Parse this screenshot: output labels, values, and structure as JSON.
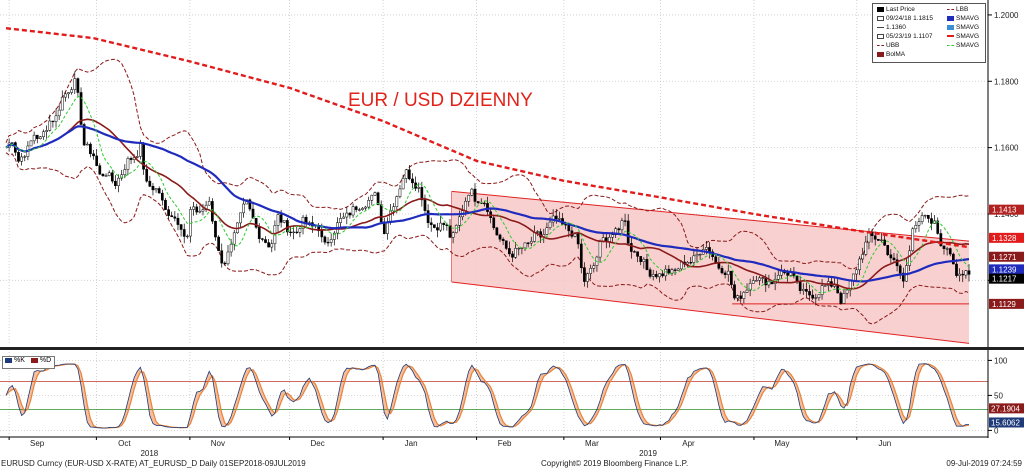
{
  "chart_data": [
    {
      "type": "candlestick",
      "title": "EUR / USD DZIENNY",
      "y_ticks": [
        1.12,
        1.14,
        1.16,
        1.18,
        1.2
      ],
      "y_tick_labels": [
        "1.1200",
        "1.1400",
        "1.1600",
        "1.1800",
        "1.2000"
      ],
      "ylim": [
        1.1005,
        1.2045
      ],
      "x_months": [
        {
          "label": "Sep",
          "date": "2018-09-04"
        },
        {
          "label": "Oct",
          "date": "2018-10-02"
        },
        {
          "label": "Nov",
          "date": "2018-11-01"
        },
        {
          "label": "Dec",
          "date": "2018-12-03"
        },
        {
          "label": "Jan",
          "date": "2019-01-02"
        },
        {
          "label": "Feb",
          "date": "2019-02-01"
        },
        {
          "label": "Mar",
          "date": "2019-03-01"
        },
        {
          "label": "Apr",
          "date": "2019-04-01"
        },
        {
          "label": "May",
          "date": "2019-05-01"
        },
        {
          "label": "Jun",
          "date": "2019-06-03"
        }
      ],
      "x_years": [
        {
          "label": "2018",
          "date": "2018-10-19"
        },
        {
          "label": "2019",
          "date": "2019-03-28"
        }
      ],
      "close_series": [
        [
          "2018-09-03",
          1.16
        ],
        [
          "2018-09-05",
          1.1625
        ],
        [
          "2018-09-07",
          1.156
        ],
        [
          "2018-09-10",
          1.1595
        ],
        [
          "2018-09-12",
          1.164
        ],
        [
          "2018-09-14",
          1.1625
        ],
        [
          "2018-09-17",
          1.168
        ],
        [
          "2018-09-19",
          1.169
        ],
        [
          "2018-09-21",
          1.175
        ],
        [
          "2018-09-24",
          1.1785
        ],
        [
          "2018-09-25",
          1.18
        ],
        [
          "2018-09-26",
          1.176
        ],
        [
          "2018-09-28",
          1.161
        ],
        [
          "2018-10-01",
          1.158
        ],
        [
          "2018-10-03",
          1.1515
        ],
        [
          "2018-10-05",
          1.1525
        ],
        [
          "2018-10-08",
          1.149
        ],
        [
          "2018-10-10",
          1.152
        ],
        [
          "2018-10-12",
          1.156
        ],
        [
          "2018-10-15",
          1.158
        ],
        [
          "2018-10-16",
          1.161
        ],
        [
          "2018-10-18",
          1.149
        ],
        [
          "2018-10-22",
          1.147
        ],
        [
          "2018-10-24",
          1.141
        ],
        [
          "2018-10-26",
          1.14
        ],
        [
          "2018-10-29",
          1.137
        ],
        [
          "2018-10-31",
          1.131
        ],
        [
          "2018-11-01",
          1.141
        ],
        [
          "2018-11-05",
          1.141
        ],
        [
          "2018-11-07",
          1.144
        ],
        [
          "2018-11-09",
          1.134
        ],
        [
          "2018-11-12",
          1.123
        ],
        [
          "2018-11-13",
          1.129
        ],
        [
          "2018-11-15",
          1.133
        ],
        [
          "2018-11-19",
          1.144
        ],
        [
          "2018-11-21",
          1.139
        ],
        [
          "2018-11-23",
          1.134
        ],
        [
          "2018-11-27",
          1.13
        ],
        [
          "2018-11-29",
          1.1395
        ],
        [
          "2018-12-03",
          1.135
        ],
        [
          "2018-12-05",
          1.134
        ],
        [
          "2018-12-07",
          1.138
        ],
        [
          "2018-12-10",
          1.136
        ],
        [
          "2018-12-12",
          1.137
        ],
        [
          "2018-12-14",
          1.13
        ],
        [
          "2018-12-17",
          1.1345
        ],
        [
          "2018-12-19",
          1.138
        ],
        [
          "2018-12-21",
          1.139
        ],
        [
          "2018-12-24",
          1.142
        ],
        [
          "2018-12-27",
          1.143
        ],
        [
          "2018-12-31",
          1.146
        ],
        [
          "2019-01-02",
          1.134
        ],
        [
          "2019-01-04",
          1.14
        ],
        [
          "2019-01-07",
          1.147
        ],
        [
          "2019-01-09",
          1.153
        ],
        [
          "2019-01-10",
          1.152
        ],
        [
          "2019-01-14",
          1.147
        ],
        [
          "2019-01-16",
          1.139
        ],
        [
          "2019-01-18",
          1.136
        ],
        [
          "2019-01-22",
          1.137
        ],
        [
          "2019-01-24",
          1.132
        ],
        [
          "2019-01-28",
          1.143
        ],
        [
          "2019-01-30",
          1.148
        ],
        [
          "2019-01-31",
          1.145
        ],
        [
          "2019-02-04",
          1.1435
        ],
        [
          "2019-02-06",
          1.137
        ],
        [
          "2019-02-08",
          1.133
        ],
        [
          "2019-02-12",
          1.1275
        ],
        [
          "2019-02-14",
          1.129
        ],
        [
          "2019-02-18",
          1.131
        ],
        [
          "2019-02-20",
          1.134
        ],
        [
          "2019-02-22",
          1.133
        ],
        [
          "2019-02-26",
          1.139
        ],
        [
          "2019-02-28",
          1.137
        ],
        [
          "2019-03-04",
          1.134
        ],
        [
          "2019-03-06",
          1.13
        ],
        [
          "2019-03-07",
          1.119
        ],
        [
          "2019-03-11",
          1.125
        ],
        [
          "2019-03-13",
          1.132
        ],
        [
          "2019-03-15",
          1.133
        ],
        [
          "2019-03-19",
          1.135
        ],
        [
          "2019-03-20",
          1.141
        ],
        [
          "2019-03-22",
          1.13
        ],
        [
          "2019-03-26",
          1.1265
        ],
        [
          "2019-03-28",
          1.1225
        ],
        [
          "2019-04-01",
          1.1215
        ],
        [
          "2019-04-03",
          1.123
        ],
        [
          "2019-04-05",
          1.122
        ],
        [
          "2019-04-09",
          1.126
        ],
        [
          "2019-04-11",
          1.1255
        ],
        [
          "2019-04-15",
          1.1305
        ],
        [
          "2019-04-17",
          1.129
        ],
        [
          "2019-04-19",
          1.1245
        ],
        [
          "2019-04-23",
          1.122
        ],
        [
          "2019-04-25",
          1.1135
        ],
        [
          "2019-04-29",
          1.118
        ],
        [
          "2019-05-01",
          1.1215
        ],
        [
          "2019-05-03",
          1.12
        ],
        [
          "2019-05-07",
          1.1195
        ],
        [
          "2019-05-09",
          1.1225
        ],
        [
          "2019-05-13",
          1.122
        ],
        [
          "2019-05-15",
          1.118
        ],
        [
          "2019-05-17",
          1.116
        ],
        [
          "2019-05-21",
          1.1155
        ],
        [
          "2019-05-23",
          1.118
        ],
        [
          "2019-05-27",
          1.119
        ],
        [
          "2019-05-29",
          1.1135
        ],
        [
          "2019-05-31",
          1.117
        ],
        [
          "2019-06-03",
          1.124
        ],
        [
          "2019-06-05",
          1.129
        ],
        [
          "2019-06-07",
          1.1335
        ],
        [
          "2019-06-11",
          1.132
        ],
        [
          "2019-06-13",
          1.1285
        ],
        [
          "2019-06-17",
          1.122
        ],
        [
          "2019-06-18",
          1.1195
        ],
        [
          "2019-06-20",
          1.1295
        ],
        [
          "2019-06-21",
          1.137
        ],
        [
          "2019-06-25",
          1.139
        ],
        [
          "2019-06-26",
          1.1375
        ],
        [
          "2019-06-28",
          1.137
        ],
        [
          "2019-07-01",
          1.1285
        ],
        [
          "2019-07-02",
          1.13
        ],
        [
          "2019-07-03",
          1.1285
        ],
        [
          "2019-07-05",
          1.1225
        ],
        [
          "2019-07-08",
          1.1217
        ],
        [
          "2019-07-09",
          1.121
        ]
      ],
      "price_tags": [
        {
          "value": 1.1413,
          "label": "1.1413",
          "color": "#b22020"
        },
        {
          "value": 1.1328,
          "label": "1.1328",
          "color": "#e21b1b"
        },
        {
          "value": 1.1271,
          "label": "1.1271",
          "color": "#8b1a1a"
        },
        {
          "value": 1.1239,
          "label": "1.1239",
          "color": "#1f2bbd"
        },
        {
          "value": 1.1217,
          "label": "1.1217",
          "color": "#000000"
        },
        {
          "value": 1.1129,
          "label": "1.1129",
          "color": "#8b1a1a"
        }
      ],
      "legend": {
        "items": [
          {
            "label": "Last Price",
            "color": "#000000"
          },
          {
            "label": "09/24/18 1.1815",
            "color": "#444444"
          },
          {
            "label": "1.1360",
            "color": "#444444"
          },
          {
            "label": "05/23/19 1.1107",
            "color": "#444444"
          },
          {
            "label": "UBB",
            "color": "#8b1a1a"
          },
          {
            "label": "BolMA",
            "color": "#8b1a1a"
          },
          {
            "label": "LBB",
            "color": "#8b1a1a"
          },
          {
            "label": "SMAVG",
            "color": "#1f2bbd"
          },
          {
            "label": "SMAVG",
            "color": "#3b8fd8"
          },
          {
            "label": "SMAVG",
            "color": "#e21b1b"
          },
          {
            "label": "SMAVG",
            "color": "#2ecc2e"
          }
        ]
      },
      "colors": {
        "bb": "#8b1a1a",
        "sma_long": "#e21b1b",
        "sma_mid": "#1f2bbd",
        "sma_fast": "#2ecc2e",
        "candle": "#000000",
        "channel_fill": "#f8c8c8",
        "channel_line": "#e02222"
      }
    },
    {
      "type": "line",
      "ylim": [
        -8,
        112
      ],
      "y_ticks": [
        0,
        50,
        100
      ],
      "y_tick_labels": [
        "0",
        "50",
        "100"
      ],
      "levels": [
        30,
        70
      ],
      "legend": [
        {
          "label": "%K",
          "color": "#1f3a7a"
        },
        {
          "label": "%D",
          "color": "#8b1a1a"
        }
      ],
      "tags": [
        {
          "value": 27.1904,
          "label": "27.1904",
          "color": "#8b1a1a"
        },
        {
          "value": 15.6062,
          "label": "15.6062",
          "color": "#1f3a7a"
        }
      ],
      "colors": {
        "k": "#1f3a7a",
        "d": "#e8833a",
        "fill": "#f3a878",
        "level_up": "#c0392b",
        "level_down": "#2e8b2e"
      }
    }
  ],
  "footer": {
    "left": "EURUSD Curncy (EUR-USD X-RATE) AT_EURUSD_D  Daily 01SEP2018-09JUL2019",
    "center": "Copyright© 2019 Bloomberg Finance L.P.",
    "right": "09-Jul-2019 07:24:59"
  }
}
